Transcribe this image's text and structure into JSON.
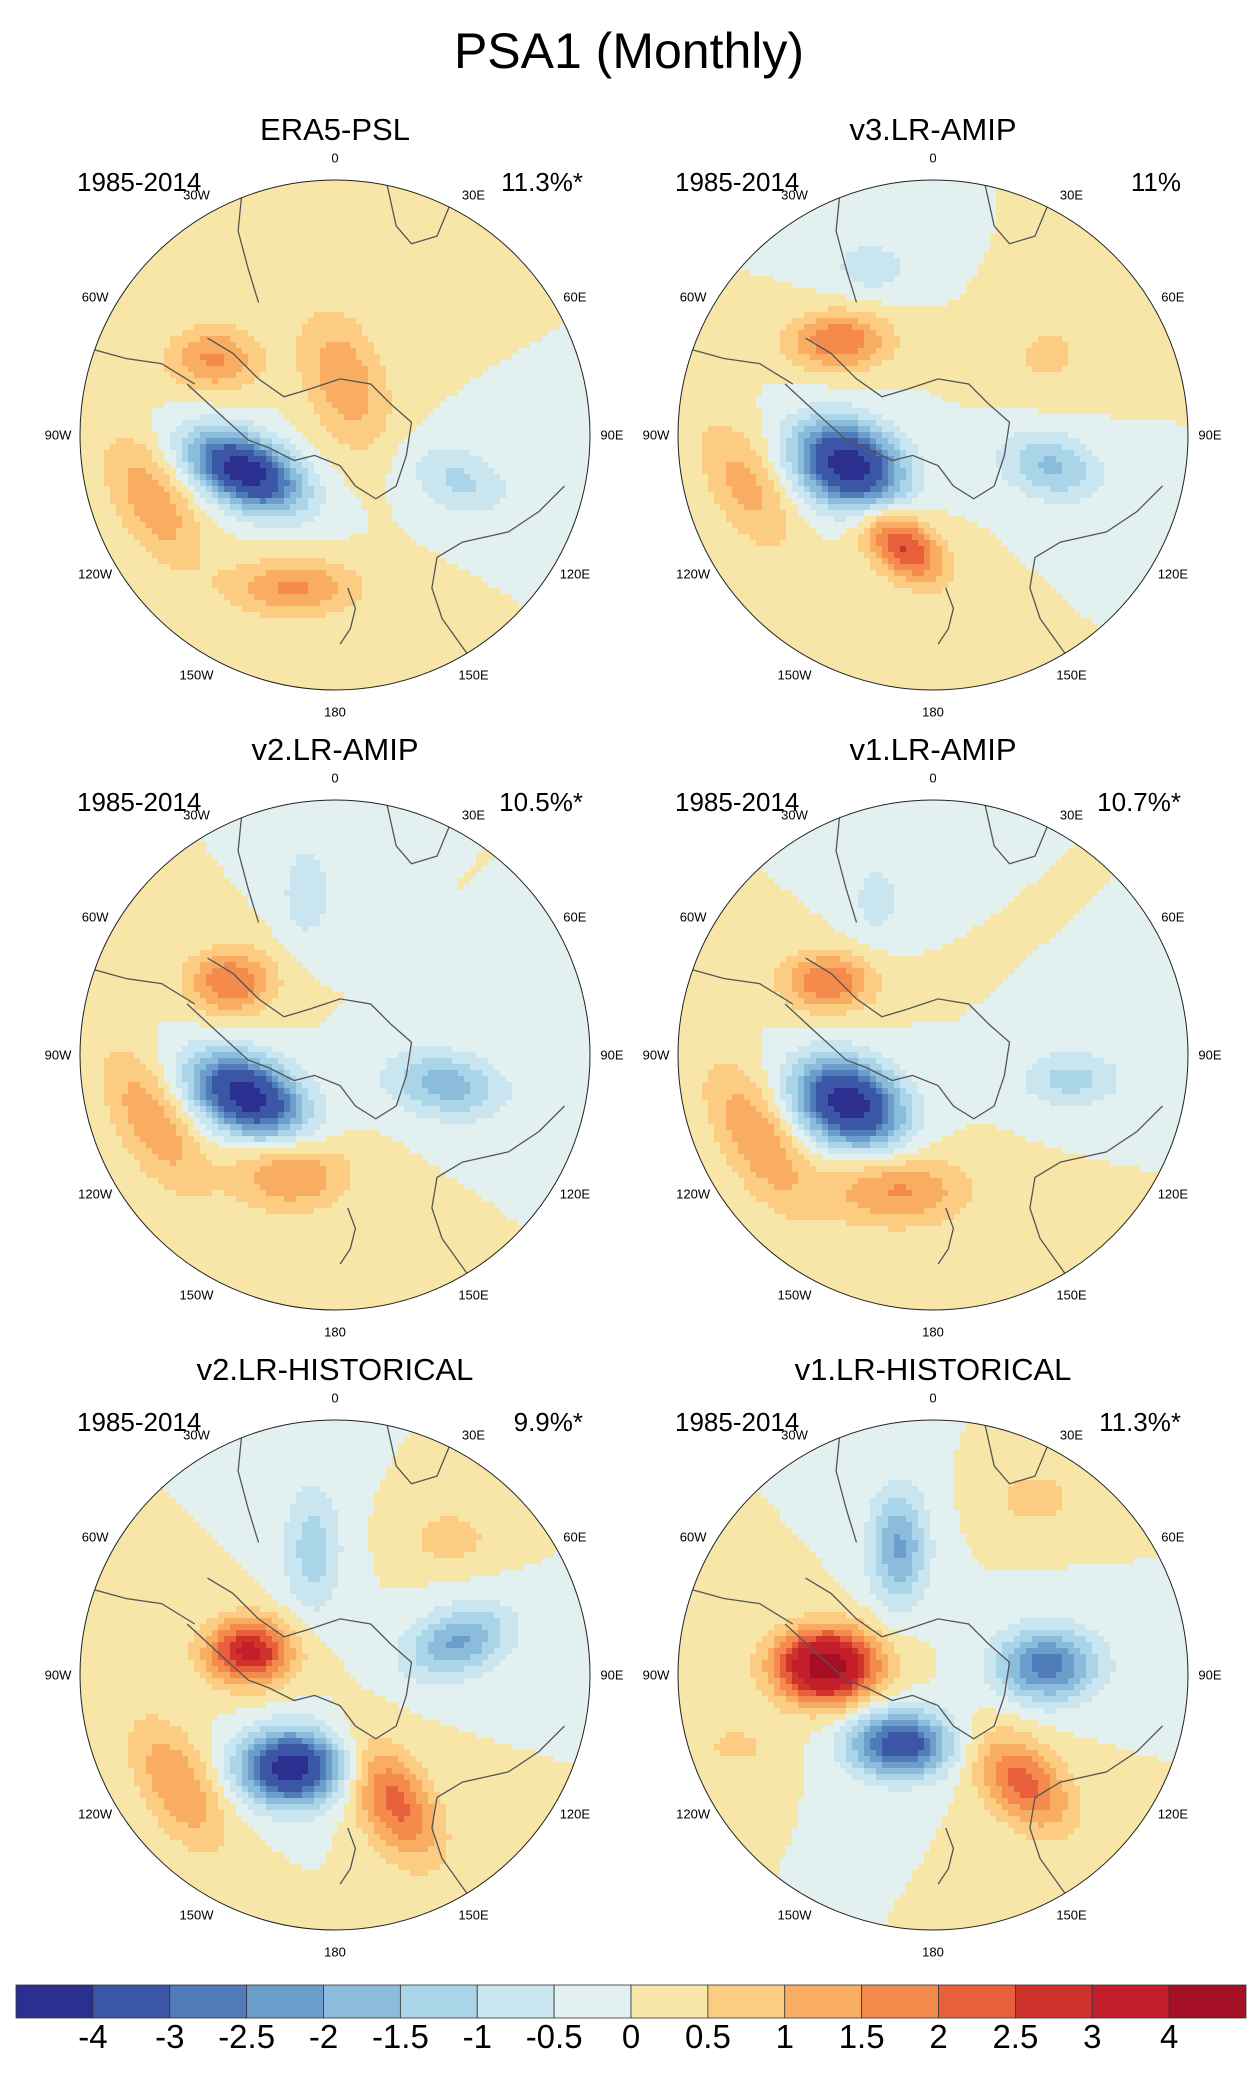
{
  "figure": {
    "title": "PSA1 (Monthly)",
    "period_label": "1985-2014",
    "longitude_labels": [
      "0",
      "30E",
      "60E",
      "90E",
      "120E",
      "150E",
      "180",
      "150W",
      "120W",
      "90W",
      "60W",
      "30W"
    ]
  },
  "panels": [
    {
      "title": "ERA5-PSL",
      "variance": "11.3%*",
      "blobs": [
        {
          "lon": -112,
          "r": 0.38,
          "amp": -4.6,
          "sa": 0.16,
          "sb": 0.09,
          "rot": 25
        },
        {
          "lon": -58,
          "r": 0.56,
          "amp": 1.6,
          "sa": 0.13,
          "sb": 0.09,
          "rot": 0
        },
        {
          "lon": 10,
          "r": 0.22,
          "amp": 1.4,
          "sa": 0.2,
          "sb": 0.11,
          "rot": 70
        },
        {
          "lon": 110,
          "r": 0.52,
          "amp": -1.1,
          "sa": 0.15,
          "sb": 0.09,
          "rot": 20
        },
        {
          "lon": -165,
          "r": 0.62,
          "amp": 1.6,
          "sa": 0.18,
          "sb": 0.08,
          "rot": 0
        },
        {
          "lon": -110,
          "r": 0.76,
          "amp": 1.4,
          "sa": 0.2,
          "sb": 0.1,
          "rot": 60
        }
      ]
    },
    {
      "title": "v3.LR-AMIP",
      "variance": "11%",
      "blobs": [
        {
          "lon": -110,
          "r": 0.35,
          "amp": -4.7,
          "sa": 0.15,
          "sb": 0.11,
          "rot": 25
        },
        {
          "lon": -45,
          "r": 0.52,
          "amp": 2.0,
          "sa": 0.14,
          "sb": 0.08,
          "rot": 0
        },
        {
          "lon": -165,
          "r": 0.45,
          "amp": 2.6,
          "sa": 0.13,
          "sb": 0.08,
          "rot": 40
        },
        {
          "lon": 105,
          "r": 0.48,
          "amp": -1.6,
          "sa": 0.14,
          "sb": 0.09,
          "rot": 15
        },
        {
          "lon": -20,
          "r": 0.7,
          "amp": -0.8,
          "sa": 0.12,
          "sb": 0.08,
          "rot": 0
        },
        {
          "lon": 55,
          "r": 0.55,
          "amp": 0.6,
          "sa": 0.14,
          "sb": 0.12,
          "rot": 0
        },
        {
          "lon": -105,
          "r": 0.76,
          "amp": 1.2,
          "sa": 0.2,
          "sb": 0.1,
          "rot": 60
        }
      ]
    },
    {
      "title": "v2.LR-AMIP",
      "variance": "10.5%*",
      "blobs": [
        {
          "lon": -115,
          "r": 0.38,
          "amp": -4.6,
          "sa": 0.16,
          "sb": 0.1,
          "rot": 25
        },
        {
          "lon": -55,
          "r": 0.5,
          "amp": 2.0,
          "sa": 0.12,
          "sb": 0.09,
          "rot": 0
        },
        {
          "lon": 105,
          "r": 0.45,
          "amp": -1.8,
          "sa": 0.16,
          "sb": 0.09,
          "rot": 10
        },
        {
          "lon": -10,
          "r": 0.65,
          "amp": -0.9,
          "sa": 0.14,
          "sb": 0.07,
          "rot": 90
        },
        {
          "lon": -160,
          "r": 0.5,
          "amp": 1.6,
          "sa": 0.16,
          "sb": 0.1,
          "rot": 0
        },
        {
          "lon": -110,
          "r": 0.76,
          "amp": 1.4,
          "sa": 0.22,
          "sb": 0.1,
          "rot": 60
        }
      ]
    },
    {
      "title": "v1.LR-AMIP",
      "variance": "10.7%*",
      "blobs": [
        {
          "lon": -120,
          "r": 0.38,
          "amp": -4.7,
          "sa": 0.15,
          "sb": 0.11,
          "rot": 25
        },
        {
          "lon": -55,
          "r": 0.5,
          "amp": 2.0,
          "sa": 0.13,
          "sb": 0.08,
          "rot": 0
        },
        {
          "lon": 100,
          "r": 0.55,
          "amp": -1.2,
          "sa": 0.14,
          "sb": 0.08,
          "rot": 0
        },
        {
          "lon": -20,
          "r": 0.65,
          "amp": -0.7,
          "sa": 0.13,
          "sb": 0.08,
          "rot": 90
        },
        {
          "lon": -165,
          "r": 0.55,
          "amp": 1.6,
          "sa": 0.2,
          "sb": 0.1,
          "rot": 0
        },
        {
          "lon": -115,
          "r": 0.76,
          "amp": 1.5,
          "sa": 0.22,
          "sb": 0.1,
          "rot": 60
        }
      ]
    },
    {
      "title": "v2.LR-HISTORICAL",
      "variance": "9.9%*",
      "blobs": [
        {
          "lon": -155,
          "r": 0.4,
          "amp": -4.6,
          "sa": 0.14,
          "sb": 0.1,
          "rot": 0
        },
        {
          "lon": -75,
          "r": 0.35,
          "amp": 3.2,
          "sa": 0.12,
          "sb": 0.09,
          "rot": 0
        },
        {
          "lon": 75,
          "r": 0.5,
          "amp": -2.1,
          "sa": 0.15,
          "sb": 0.09,
          "rot": -20
        },
        {
          "lon": -10,
          "r": 0.5,
          "amp": -1.3,
          "sa": 0.18,
          "sb": 0.08,
          "rot": 90
        },
        {
          "lon": 155,
          "r": 0.55,
          "amp": 2.2,
          "sa": 0.18,
          "sb": 0.1,
          "rot": 60
        },
        {
          "lon": 40,
          "r": 0.7,
          "amp": 0.8,
          "sa": 0.12,
          "sb": 0.08,
          "rot": 0
        },
        {
          "lon": -125,
          "r": 0.75,
          "amp": 1.5,
          "sa": 0.2,
          "sb": 0.1,
          "rot": 60
        }
      ]
    },
    {
      "title": "v1.LR-HISTORICAL",
      "variance": "11.3%*",
      "blobs": [
        {
          "lon": -155,
          "r": 0.3,
          "amp": -3.6,
          "sa": 0.14,
          "sb": 0.09,
          "rot": 0
        },
        {
          "lon": -85,
          "r": 0.42,
          "amp": 4.6,
          "sa": 0.14,
          "sb": 0.1,
          "rot": 0
        },
        {
          "lon": 85,
          "r": 0.45,
          "amp": -2.8,
          "sa": 0.14,
          "sb": 0.1,
          "rot": 0
        },
        {
          "lon": -15,
          "r": 0.52,
          "amp": -2.1,
          "sa": 0.16,
          "sb": 0.08,
          "rot": 90
        },
        {
          "lon": 140,
          "r": 0.55,
          "amp": 2.2,
          "sa": 0.16,
          "sb": 0.1,
          "rot": 45
        },
        {
          "lon": 30,
          "r": 0.8,
          "amp": 0.8,
          "sa": 0.12,
          "sb": 0.08,
          "rot": 0
        },
        {
          "lon": -110,
          "r": 0.82,
          "amp": 0.6,
          "sa": 0.14,
          "sb": 0.08,
          "rot": 0
        }
      ]
    }
  ],
  "colorbar": {
    "levels": [
      "-4",
      "-3",
      "-2.5",
      "-2",
      "-1.5",
      "-1",
      "-0.5",
      "0",
      "0.5",
      "1",
      "1.5",
      "2",
      "2.5",
      "3",
      "4"
    ],
    "thresholds": [
      -4,
      -3,
      -2.5,
      -2,
      -1.5,
      -1,
      -0.5,
      0,
      0.5,
      1,
      1.5,
      2,
      2.5,
      3,
      4
    ],
    "colors": [
      "#2b2f8f",
      "#3a56a5",
      "#4f7bb9",
      "#6b9ecb",
      "#8bbcdc",
      "#aad4e8",
      "#c9e5ef",
      "#e2f1ef",
      "#f7e6a8",
      "#fbcc82",
      "#f9ad63",
      "#f48a4c",
      "#e8603b",
      "#cf312b",
      "#c41e2a",
      "#a50f25"
    ]
  }
}
